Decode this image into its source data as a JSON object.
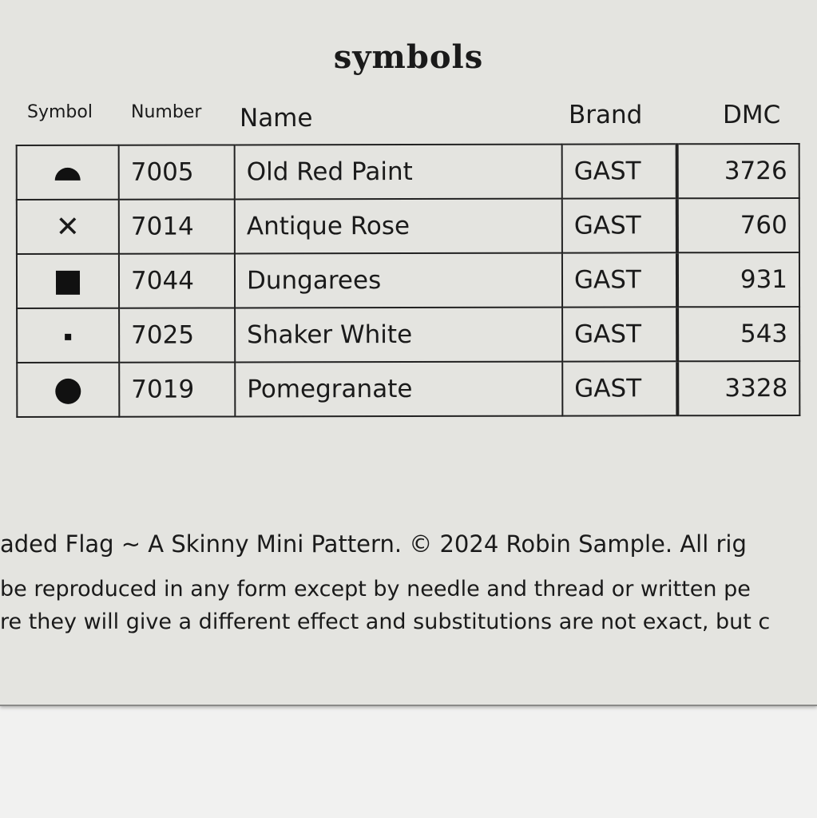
{
  "title": "symbols",
  "headers": {
    "symbol": "Symbol",
    "number": "Number",
    "name": "Name",
    "brand": "Brand",
    "dmc": "DMC"
  },
  "rows": [
    {
      "symbol": "half-circle",
      "number": "7005",
      "name": "Old Red Paint",
      "brand": "GAST",
      "dmc": "3726"
    },
    {
      "symbol": "x",
      "number": "7014",
      "name": "Antique Rose",
      "brand": "GAST",
      "dmc": "760"
    },
    {
      "symbol": "filled-square",
      "number": "7044",
      "name": "Dungarees",
      "brand": "GAST",
      "dmc": "931"
    },
    {
      "symbol": "small-dot",
      "number": "7025",
      "name": "Shaker White",
      "brand": "GAST",
      "dmc": "543"
    },
    {
      "symbol": "filled-circle",
      "number": "7019",
      "name": "Pomegranate",
      "brand": "GAST",
      "dmc": "3328"
    }
  ],
  "x_glyph": "✕",
  "footer": {
    "line1": "aded Flag ~ A Skinny Mini Pattern.  © 2024 Robin Sample. All rig",
    "line2": "be reproduced in any form except by  needle and thread or written pe",
    "line3": "re they will give a different  effect and substitutions are not exact, but c"
  }
}
